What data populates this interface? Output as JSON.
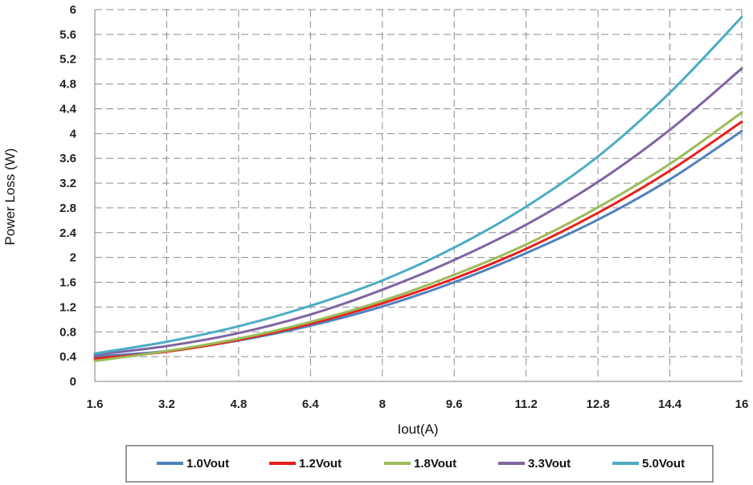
{
  "chart_data": {
    "type": "line",
    "title": "",
    "xlabel": "Iout(A)",
    "ylabel": "Power Loss (W)",
    "xlim": [
      1.6,
      16
    ],
    "ylim": [
      0,
      6
    ],
    "grid": true,
    "legend_position": "bottom",
    "x_ticks": [
      "1.6",
      "3.2",
      "4.8",
      "6.4",
      "8",
      "9.6",
      "11.2",
      "12.8",
      "14.4",
      "16"
    ],
    "y_ticks": [
      "0",
      "0.4",
      "0.8",
      "1.2",
      "1.6",
      "2",
      "2.4",
      "2.8",
      "3.2",
      "3.6",
      "4",
      "4.4",
      "4.8",
      "5.2",
      "5.6",
      "6"
    ],
    "x": [
      1.6,
      3.2,
      4.8,
      6.4,
      8,
      9.6,
      11.2,
      12.8,
      14.4,
      16
    ],
    "series": [
      {
        "name": "1.0Vout",
        "color": "#4f81bd",
        "values": [
          0.4,
          0.49,
          0.66,
          0.9,
          1.21,
          1.6,
          2.07,
          2.61,
          3.26,
          4.04
        ]
      },
      {
        "name": "1.2Vout",
        "color": "#e8201c",
        "values": [
          0.37,
          0.48,
          0.67,
          0.93,
          1.26,
          1.66,
          2.14,
          2.72,
          3.4,
          4.19
        ]
      },
      {
        "name": "1.8Vout",
        "color": "#9bbb59",
        "values": [
          0.33,
          0.49,
          0.69,
          0.96,
          1.3,
          1.72,
          2.21,
          2.81,
          3.51,
          4.34
        ]
      },
      {
        "name": "3.3Vout",
        "color": "#8064a2",
        "values": [
          0.43,
          0.57,
          0.78,
          1.08,
          1.48,
          1.96,
          2.53,
          3.22,
          4.06,
          5.05
        ]
      },
      {
        "name": "5.0Vout",
        "color": "#4bacc6",
        "values": [
          0.45,
          0.64,
          0.89,
          1.22,
          1.63,
          2.16,
          2.82,
          3.63,
          4.66,
          5.88
        ]
      }
    ]
  }
}
